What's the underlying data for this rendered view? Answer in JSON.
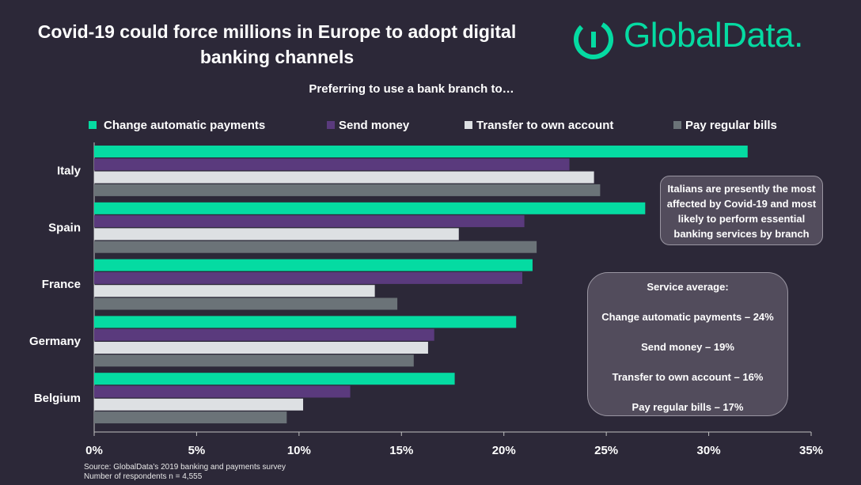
{
  "chart_data": {
    "type": "bar",
    "orientation": "horizontal",
    "title": "Covid-19 could force millions in Europe to adopt digital banking channels",
    "subtitle": "Preferring to use a bank branch to…",
    "categories": [
      "Italy",
      "Spain",
      "France",
      "Germany",
      "Belgium"
    ],
    "series": [
      {
        "name": "Change automatic payments",
        "color": "#05dba2",
        "values": [
          31.9,
          26.9,
          21.4,
          20.6,
          17.6
        ]
      },
      {
        "name": "Send money",
        "color": "#5a3a7d",
        "values": [
          23.2,
          21.0,
          20.9,
          16.6,
          12.5
        ]
      },
      {
        "name": "Transfer to own account",
        "color": "#dde0e3",
        "values": [
          24.4,
          17.8,
          13.7,
          16.3,
          10.2
        ]
      },
      {
        "name": "Pay regular bills",
        "color": "#6b7378",
        "values": [
          24.7,
          21.6,
          14.8,
          15.6,
          9.4
        ]
      }
    ],
    "xlim": [
      0,
      35
    ],
    "xticks": [
      {
        "value": 0,
        "label": "0%"
      },
      {
        "value": 5,
        "label": "5%"
      },
      {
        "value": 10,
        "label": "10%"
      },
      {
        "value": 15,
        "label": "15%"
      },
      {
        "value": 20,
        "label": "20%"
      },
      {
        "value": 25,
        "label": "25%"
      },
      {
        "value": 30,
        "label": "30%"
      },
      {
        "value": 35,
        "label": "35%"
      }
    ],
    "legend": "top",
    "annotations": [
      "Italians are presently the most affected by Covid-19 and most likely to perform essential banking services by branch"
    ],
    "service_average": {
      "title": "Service average:",
      "items": [
        "Change automatic payments – 24%",
        "Send money – 19%",
        "Transfer to own account – 16%",
        "Pay regular bills – 17%"
      ]
    },
    "source": [
      "Source: GlobalData’s 2019 banking and payments survey",
      "Number of respondents n = 4,555"
    ]
  },
  "logo": "GlobalData."
}
